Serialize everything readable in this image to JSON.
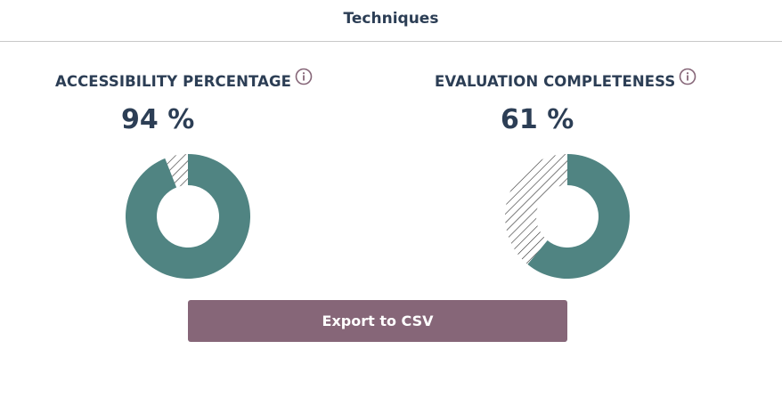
{
  "header": {
    "title": "Techniques"
  },
  "metrics": [
    {
      "title": "ACCESSIBILITY PERCENTAGE",
      "value_text": "94 %",
      "percent": 94,
      "icon": "info-icon"
    },
    {
      "title": "EVALUATION COMPLETENESS",
      "value_text": "61 %",
      "percent": 61,
      "icon": "info-icon"
    }
  ],
  "export_button": {
    "label": "Export to CSV"
  },
  "colors": {
    "filled": "#508482",
    "text": "#2c3e55",
    "button": "#866678",
    "icon": "#866678",
    "hatch": "#2c2c2c"
  }
}
